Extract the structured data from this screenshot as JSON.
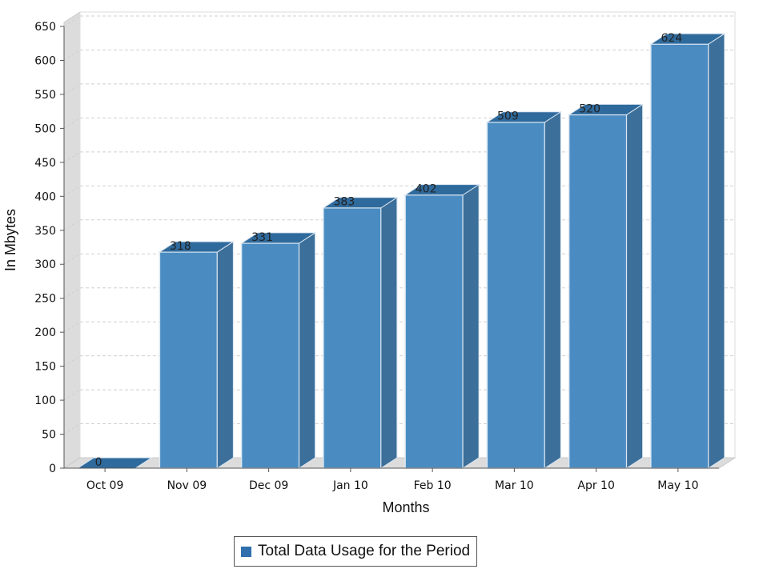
{
  "chart_data": {
    "type": "bar",
    "categories": [
      "Oct 09",
      "Nov 09",
      "Dec 09",
      "Jan 10",
      "Feb 10",
      "Mar 10",
      "Apr 10",
      "May 10"
    ],
    "series": [
      {
        "name": "Total Data Usage for the Period",
        "values": [
          0,
          318,
          331,
          383,
          402,
          509,
          520,
          624
        ]
      }
    ],
    "data_labels": [
      "0",
      "318",
      "331",
      "383",
      "402",
      "509",
      "520",
      "624"
    ],
    "xlabel": "Months",
    "ylabel": "In Mbytes",
    "ylim": [
      0,
      650
    ],
    "yticks": [
      0,
      50,
      100,
      150,
      200,
      250,
      300,
      350,
      400,
      450,
      500,
      550,
      600,
      650
    ],
    "grid": true,
    "three_d": true,
    "legend_position": "bottom",
    "colors": {
      "bar_front": "#4a8cc2",
      "bar_top": "#2f6a9c",
      "bar_side": "#3c6f99",
      "bar_edge": "#d9e6f2",
      "legend_swatch": "#2f6fae",
      "wall": "#dcdcdc",
      "gridline": "#cfcfcf"
    }
  }
}
